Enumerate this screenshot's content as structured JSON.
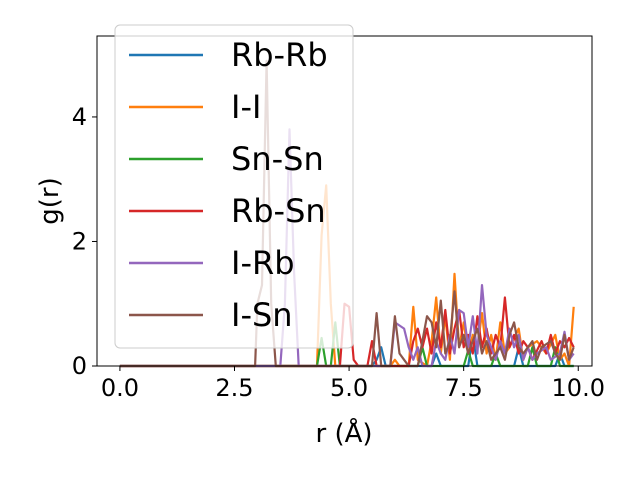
{
  "chart_data": {
    "type": "line",
    "title": "",
    "xlabel": "r (Å)",
    "ylabel": "g(r)",
    "xlim": [
      -0.5,
      10.3
    ],
    "ylim": [
      0,
      5.3
    ],
    "xticks": [
      0.0,
      2.5,
      5.0,
      7.5,
      10.0
    ],
    "xtick_labels": [
      "0.0",
      "2.5",
      "5.0",
      "7.5",
      "10.0"
    ],
    "yticks": [
      0,
      2,
      4
    ],
    "ytick_labels": [
      "0",
      "2",
      "4"
    ],
    "grid": false,
    "legend_position": "upper-left",
    "series": [
      {
        "name": "Rb-Rb",
        "color": "#1f77b4",
        "points": [
          [
            0,
            0
          ],
          [
            5.5,
            0
          ],
          [
            5.6,
            0.1
          ],
          [
            5.7,
            0.3
          ],
          [
            5.8,
            0
          ],
          [
            6.8,
            0
          ],
          [
            6.9,
            0.2
          ],
          [
            7.0,
            0
          ],
          [
            7.6,
            0
          ],
          [
            7.7,
            0.5
          ],
          [
            7.8,
            0
          ],
          [
            8.6,
            0
          ],
          [
            8.7,
            0.3
          ],
          [
            8.8,
            0
          ],
          [
            9.5,
            0
          ],
          [
            9.6,
            0.2
          ],
          [
            9.7,
            0
          ],
          [
            9.9,
            0
          ]
        ]
      },
      {
        "name": "I-I",
        "color": "#ff7f0e",
        "points": [
          [
            0,
            0
          ],
          [
            4.3,
            0
          ],
          [
            4.4,
            2.1
          ],
          [
            4.5,
            2.9
          ],
          [
            4.6,
            1.0
          ],
          [
            4.7,
            0
          ],
          [
            5.9,
            0
          ],
          [
            6.0,
            0.1
          ],
          [
            6.1,
            0
          ],
          [
            6.3,
            0
          ],
          [
            6.4,
            0.95
          ],
          [
            6.5,
            0.1
          ],
          [
            6.7,
            0
          ],
          [
            6.8,
            0.4
          ],
          [
            6.9,
            1.1
          ],
          [
            7.0,
            0.2
          ],
          [
            7.1,
            0.8
          ],
          [
            7.2,
            0.1
          ],
          [
            7.3,
            1.48
          ],
          [
            7.4,
            0.3
          ],
          [
            7.5,
            0.7
          ],
          [
            7.6,
            0.2
          ],
          [
            7.7,
            0.5
          ],
          [
            7.8,
            0.3
          ],
          [
            7.9,
            0.85
          ],
          [
            8.0,
            0.2
          ],
          [
            8.1,
            0.5
          ],
          [
            8.2,
            0.1
          ],
          [
            8.3,
            0.7
          ],
          [
            8.4,
            0.2
          ],
          [
            8.5,
            0.3
          ],
          [
            8.7,
            0.6
          ],
          [
            8.8,
            0.1
          ],
          [
            8.9,
            0.3
          ],
          [
            9.1,
            0.4
          ],
          [
            9.3,
            0.2
          ],
          [
            9.5,
            0.5
          ],
          [
            9.6,
            0.1
          ],
          [
            9.7,
            0.2
          ],
          [
            9.8,
            0
          ],
          [
            9.9,
            0.95
          ]
        ]
      },
      {
        "name": "Sn-Sn",
        "color": "#2ca02c",
        "points": [
          [
            0,
            0
          ],
          [
            4.3,
            0
          ],
          [
            4.4,
            0.45
          ],
          [
            4.5,
            0
          ],
          [
            4.6,
            0
          ],
          [
            4.7,
            0.7
          ],
          [
            4.8,
            0
          ],
          [
            6.5,
            0
          ],
          [
            6.6,
            0.3
          ],
          [
            6.7,
            0
          ],
          [
            7.5,
            0
          ],
          [
            7.6,
            0.25
          ],
          [
            7.7,
            0
          ],
          [
            8.1,
            0
          ],
          [
            8.2,
            0.2
          ],
          [
            8.3,
            0
          ],
          [
            8.9,
            0
          ],
          [
            9.0,
            0.3
          ],
          [
            9.1,
            0
          ],
          [
            9.4,
            0
          ],
          [
            9.5,
            0.3
          ],
          [
            9.6,
            0
          ],
          [
            9.9,
            0
          ]
        ]
      },
      {
        "name": "Rb-Sn",
        "color": "#d62728",
        "points": [
          [
            0,
            0
          ],
          [
            4.8,
            0
          ],
          [
            4.9,
            1.0
          ],
          [
            5.0,
            0.95
          ],
          [
            5.1,
            0.1
          ],
          [
            5.2,
            0
          ],
          [
            5.4,
            0
          ],
          [
            5.5,
            0.4
          ],
          [
            5.6,
            0
          ],
          [
            6.3,
            0
          ],
          [
            6.4,
            0.4
          ],
          [
            6.5,
            0.6
          ],
          [
            6.6,
            0.3
          ],
          [
            6.7,
            0.6
          ],
          [
            6.8,
            0.2
          ],
          [
            6.9,
            0.7
          ],
          [
            7.0,
            0.3
          ],
          [
            7.1,
            0.9
          ],
          [
            7.2,
            0.2
          ],
          [
            7.3,
            0.6
          ],
          [
            7.4,
            0.9
          ],
          [
            7.5,
            0.3
          ],
          [
            7.6,
            0.5
          ],
          [
            7.7,
            0.2
          ],
          [
            7.8,
            0.8
          ],
          [
            7.9,
            0.3
          ],
          [
            8.0,
            0.6
          ],
          [
            8.1,
            0.2
          ],
          [
            8.2,
            0.5
          ],
          [
            8.3,
            0.3
          ],
          [
            8.4,
            1.1
          ],
          [
            8.5,
            0.3
          ],
          [
            8.6,
            0.5
          ],
          [
            8.7,
            0.2
          ],
          [
            8.8,
            0.4
          ],
          [
            8.9,
            0.3
          ],
          [
            9.0,
            0.1
          ],
          [
            9.2,
            0.4
          ],
          [
            9.3,
            0.2
          ],
          [
            9.4,
            0.5
          ],
          [
            9.5,
            0.2
          ],
          [
            9.6,
            0.4
          ],
          [
            9.7,
            0.3
          ],
          [
            9.8,
            0.45
          ],
          [
            9.9,
            0.3
          ]
        ]
      },
      {
        "name": "I-Rb",
        "color": "#9467bd",
        "points": [
          [
            0,
            0
          ],
          [
            3.5,
            0
          ],
          [
            3.6,
            1.0
          ],
          [
            3.7,
            3.8
          ],
          [
            3.8,
            1.5
          ],
          [
            3.9,
            0
          ],
          [
            5.9,
            0
          ],
          [
            6.0,
            0.7
          ],
          [
            6.1,
            0.65
          ],
          [
            6.2,
            0.6
          ],
          [
            6.3,
            0.3
          ],
          [
            6.4,
            0.1
          ],
          [
            6.5,
            0.3
          ],
          [
            6.6,
            0
          ],
          [
            6.8,
            0
          ],
          [
            6.9,
            0.4
          ],
          [
            7.0,
            0.2
          ],
          [
            7.1,
            0.1
          ],
          [
            7.2,
            0.5
          ],
          [
            7.3,
            0.2
          ],
          [
            7.4,
            0.9
          ],
          [
            7.5,
            0.85
          ],
          [
            7.6,
            0.3
          ],
          [
            7.7,
            0.8
          ],
          [
            7.8,
            0.2
          ],
          [
            7.9,
            1.3
          ],
          [
            8.0,
            0.5
          ],
          [
            8.1,
            0.3
          ],
          [
            8.2,
            0.1
          ],
          [
            8.3,
            0.4
          ],
          [
            8.4,
            0.2
          ],
          [
            8.5,
            0.6
          ],
          [
            8.6,
            0.3
          ],
          [
            8.7,
            0.5
          ],
          [
            8.8,
            0.1
          ],
          [
            8.9,
            0.3
          ],
          [
            9.0,
            0.1
          ],
          [
            9.1,
            0.2
          ],
          [
            9.3,
            0.3
          ],
          [
            9.4,
            0.1
          ],
          [
            9.6,
            0.2
          ],
          [
            9.7,
            0.55
          ],
          [
            9.8,
            0.1
          ],
          [
            9.9,
            0.2
          ]
        ]
      },
      {
        "name": "I-Sn",
        "color": "#8c564b",
        "points": [
          [
            0,
            0
          ],
          [
            2.95,
            0
          ],
          [
            3.0,
            1.0
          ],
          [
            3.1,
            1.3
          ],
          [
            3.2,
            4.9
          ],
          [
            3.3,
            1.0
          ],
          [
            3.4,
            0
          ],
          [
            5.5,
            0
          ],
          [
            5.6,
            0.85
          ],
          [
            5.7,
            0
          ],
          [
            5.9,
            0
          ],
          [
            6.0,
            0.8
          ],
          [
            6.1,
            0.2
          ],
          [
            6.2,
            0.1
          ],
          [
            6.3,
            0
          ],
          [
            6.5,
            0
          ],
          [
            6.6,
            0.4
          ],
          [
            6.7,
            0.8
          ],
          [
            6.8,
            0.7
          ],
          [
            6.9,
            0.3
          ],
          [
            7.0,
            1.05
          ],
          [
            7.1,
            0.2
          ],
          [
            7.2,
            0.4
          ],
          [
            7.3,
            1.2
          ],
          [
            7.4,
            0.3
          ],
          [
            7.5,
            0.5
          ],
          [
            7.6,
            0.2
          ],
          [
            7.7,
            0.4
          ],
          [
            7.8,
            0.6
          ],
          [
            7.9,
            0.2
          ],
          [
            8.0,
            0.4
          ],
          [
            8.1,
            0.1
          ],
          [
            8.3,
            0.3
          ],
          [
            8.4,
            0.1
          ],
          [
            8.5,
            0.5
          ],
          [
            8.6,
            0.7
          ],
          [
            8.7,
            0.3
          ],
          [
            8.8,
            0.2
          ],
          [
            9.0,
            0.4
          ],
          [
            9.1,
            0.1
          ],
          [
            9.2,
            0.3
          ],
          [
            9.4,
            0.4
          ],
          [
            9.5,
            0.2
          ],
          [
            9.6,
            0.1
          ],
          [
            9.7,
            0.5
          ],
          [
            9.8,
            0.1
          ],
          [
            9.9,
            0.3
          ]
        ]
      }
    ]
  }
}
